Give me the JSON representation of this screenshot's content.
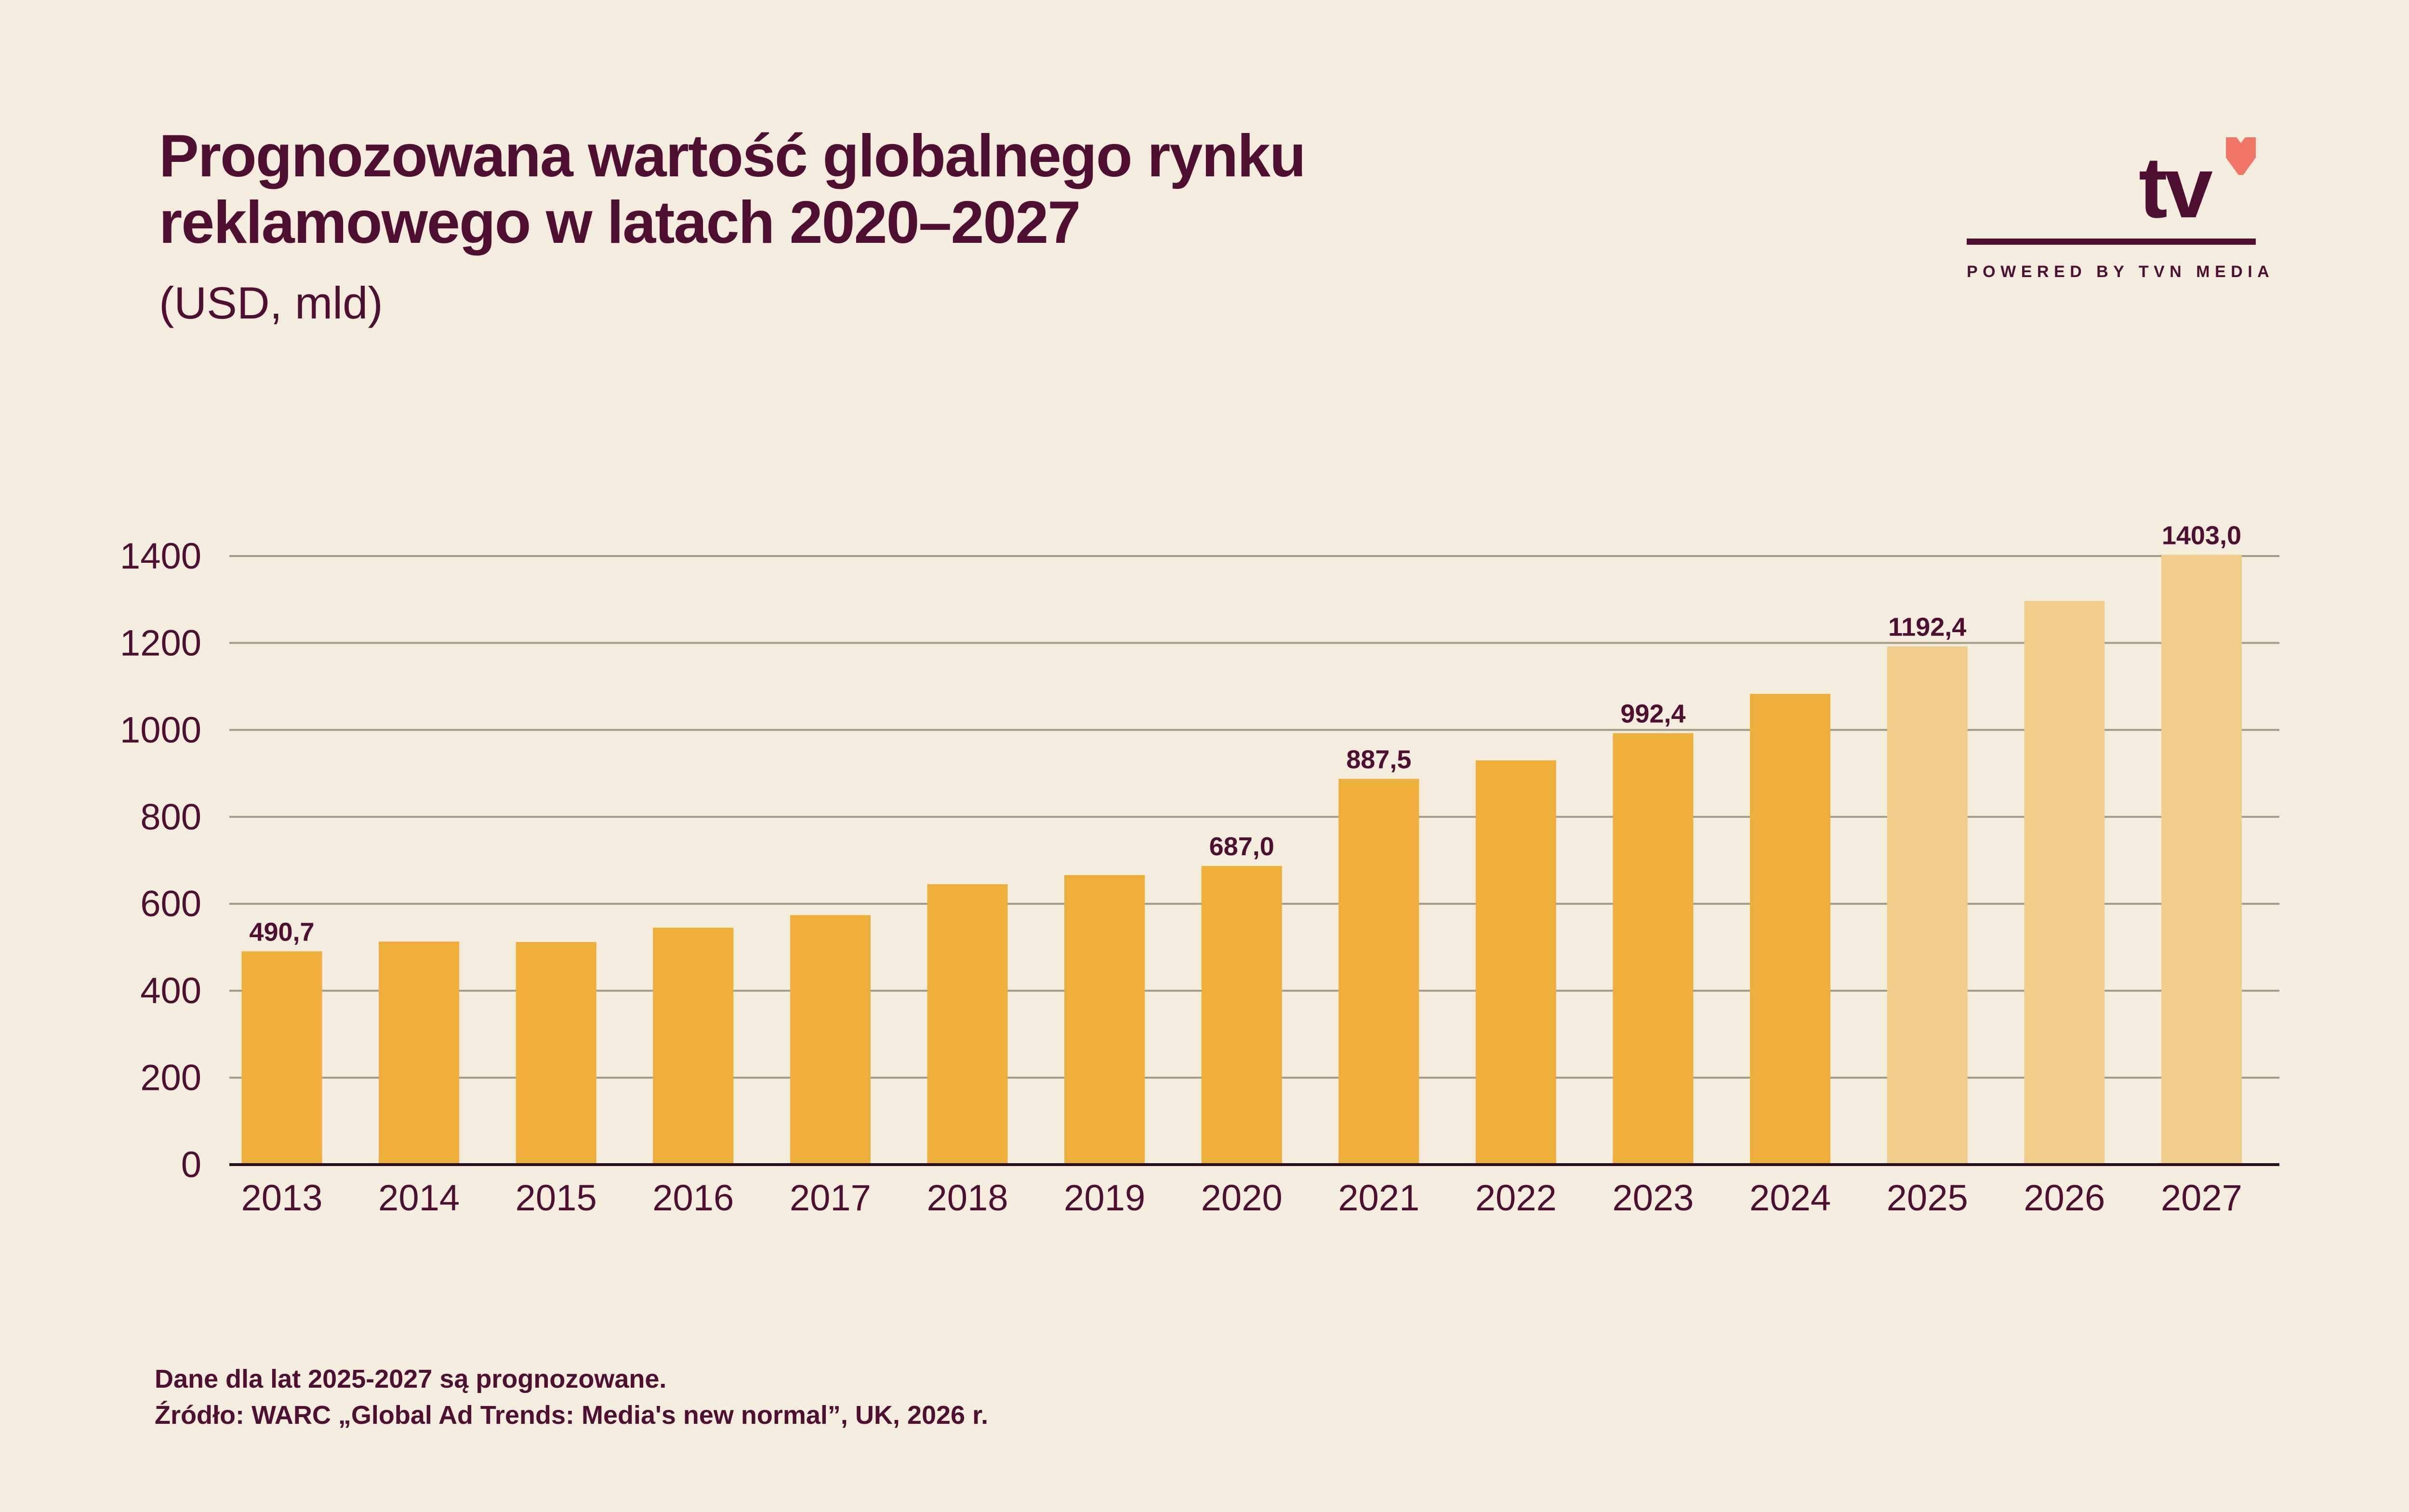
{
  "title_line1": "Prognozowana wartość globalnego rynku",
  "title_line2": "reklamowego w latach 2020–2027",
  "subtitle": "(USD, mld)",
  "logo": {
    "text": "tv",
    "powered": "POWERED BY TVN MEDIA"
  },
  "footer": {
    "note": "Dane dla lat 2025-2027 są prognozowane.",
    "source": "Źródło: WARC „Global Ad Trends: Media's new normal”, UK, 2026 r."
  },
  "colors": {
    "actual": "#edae3a",
    "forecast": "#f0cd8a",
    "text": "#4f0f33",
    "grid": "#a39a8a",
    "heart": "#f27668"
  },
  "chart_data": {
    "type": "bar",
    "title": "Prognozowana wartość globalnego rynku reklamowego w latach 2020–2027",
    "ylabel": "USD, mld",
    "xlabel": "",
    "ylim": [
      0,
      1400
    ],
    "yticks": [
      0,
      200,
      400,
      600,
      800,
      1000,
      1200,
      1400
    ],
    "grid": true,
    "categories": [
      "2013",
      "2014",
      "2015",
      "2016",
      "2017",
      "2018",
      "2019",
      "2020",
      "2021",
      "2022",
      "2023",
      "2024",
      "2025",
      "2026",
      "2027"
    ],
    "values": [
      490.7,
      513,
      512,
      545,
      574,
      645,
      666,
      687.0,
      887.5,
      930,
      992.4,
      1083,
      1192.4,
      1297,
      1403.0
    ],
    "forecast": [
      false,
      false,
      false,
      false,
      false,
      false,
      false,
      false,
      false,
      false,
      false,
      false,
      true,
      true,
      true
    ],
    "data_labels": [
      "490,7",
      "",
      "",
      "",
      "",
      "",
      "",
      "687,0",
      "887,5",
      "",
      "992,4",
      "",
      "1192,4",
      "",
      "1403,0"
    ]
  }
}
